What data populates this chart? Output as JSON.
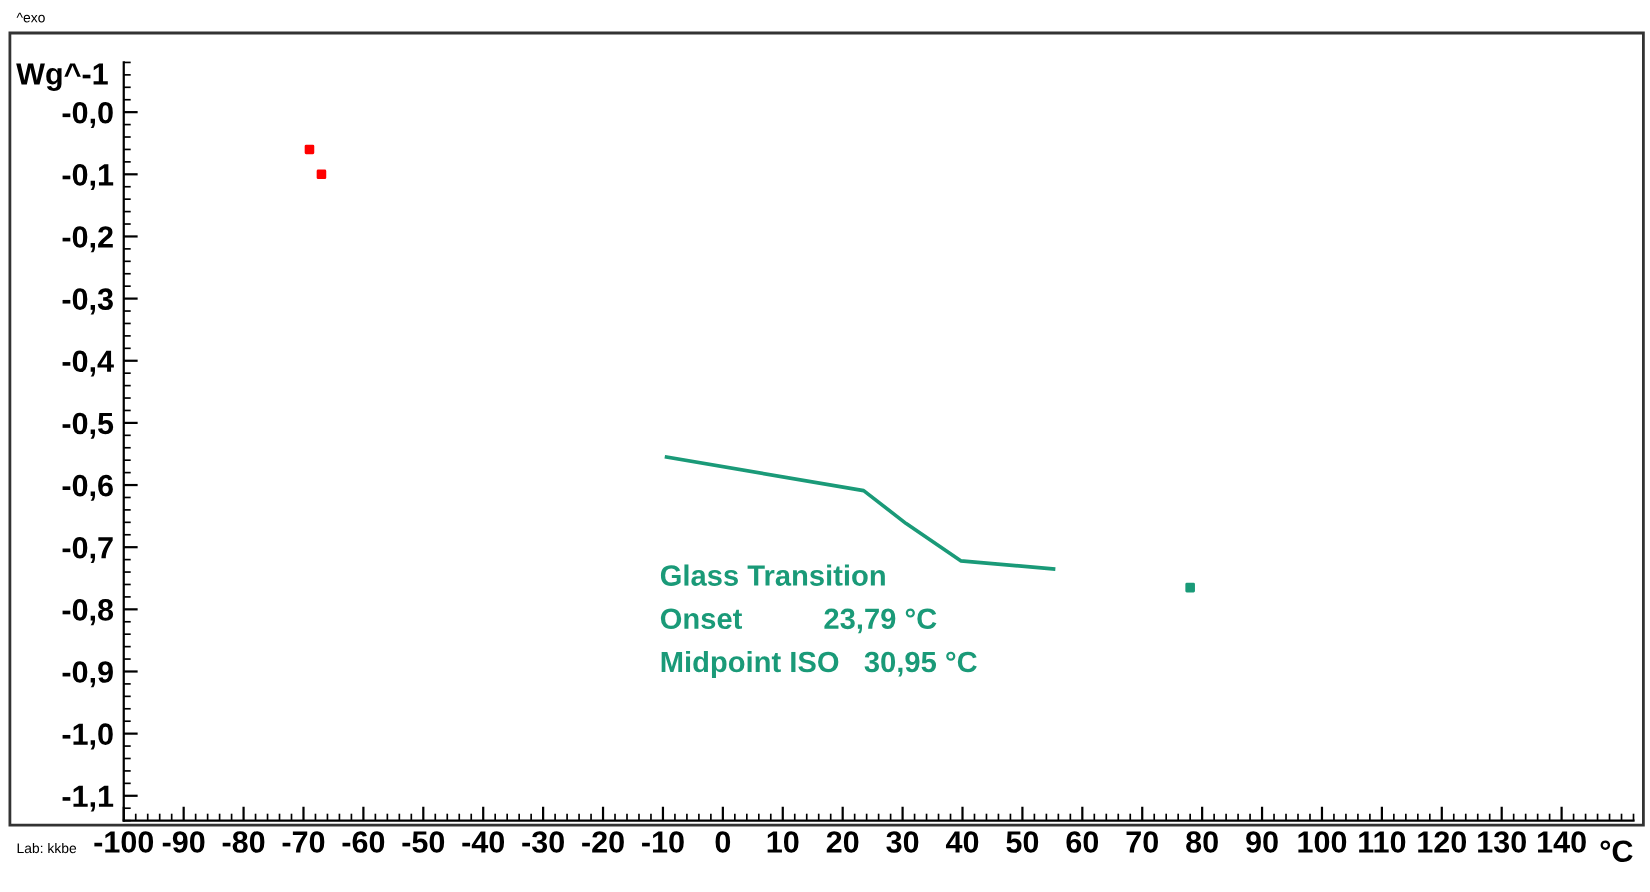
{
  "chart_data": {
    "type": "line",
    "xlabel": "°C",
    "ylabel": "Wg^-1",
    "annotations": [
      "^exo",
      "Lab: kkbe",
      "Glass Transition",
      "Onset          23,79 °C",
      "Midpoint ISO   30,95 °C"
    ],
    "series": [
      {
        "color": "#1a9a78",
        "x": [
          -9.4,
          23.5,
          30.6,
          39.7,
          55.2
        ],
        "values": [
          -0.555,
          -0.609,
          -0.662,
          -0.722,
          -0.735
        ],
        "marker": "none"
      },
      {
        "type": "scatter",
        "color": "#ff0000",
        "x": [
          -69,
          -67
        ],
        "values": [
          -0.06,
          -0.1
        ],
        "marker": "square"
      },
      {
        "type": "scatter",
        "color": "#1a9a78",
        "x": [
          78
        ],
        "values": [
          -0.765
        ],
        "marker": "square"
      }
    ],
    "xlim": [
      -100,
      152
    ],
    "ylim": [
      -1.14,
      0.08
    ],
    "xticks": [
      -100,
      -90,
      -80,
      -70,
      -60,
      -50,
      -40,
      -30,
      -20,
      -10,
      0,
      10,
      20,
      30,
      40,
      50,
      60,
      70,
      80,
      90,
      100,
      110,
      120,
      130,
      140
    ],
    "yticks": [
      {
        "value": 0,
        "label": "-0,0"
      },
      {
        "value": -0.1,
        "label": "-0,1"
      },
      {
        "value": -0.2,
        "label": "-0,2"
      },
      {
        "value": -0.3,
        "label": "-0,3"
      },
      {
        "value": -0.4,
        "label": "-0,4"
      },
      {
        "value": -0.5,
        "label": "-0,5"
      },
      {
        "value": -0.6,
        "label": "-0,6"
      },
      {
        "value": -0.7,
        "label": "-0,7"
      },
      {
        "value": -0.8,
        "label": "-0,8"
      },
      {
        "value": -0.9,
        "label": "-0,9"
      },
      {
        "value": -1.0,
        "label": "-1,0"
      },
      {
        "value": -1.1,
        "label": "-1,1"
      }
    ],
    "grid": false,
    "legend": false
  }
}
